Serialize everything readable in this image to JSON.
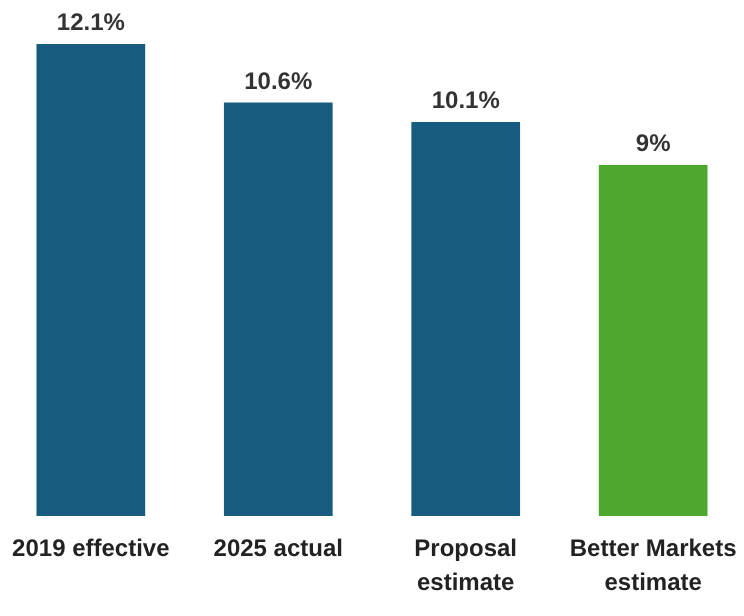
{
  "chart_data": {
    "type": "bar",
    "categories": [
      "2019 effective",
      "2025 actual",
      "Proposal estimate",
      "Better Markets estimate"
    ],
    "values": [
      12.1,
      10.6,
      10.1,
      9
    ],
    "colors": [
      "#175b7f",
      "#175b7f",
      "#175b7f",
      "#4ea72e"
    ],
    "value_labels": [
      "12.1%",
      "10.6%",
      "10.1%",
      "9%"
    ]
  }
}
